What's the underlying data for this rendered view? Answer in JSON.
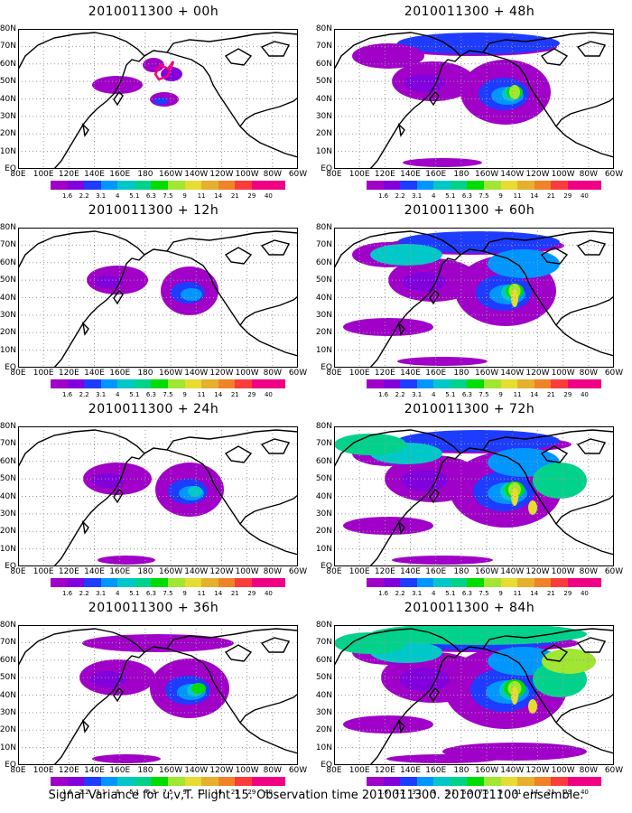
{
  "panels": [
    {
      "title": "2010011300 + 00h",
      "level": 0
    },
    {
      "title": "2010011300 + 48h",
      "level": 4
    },
    {
      "title": "2010011300 + 12h",
      "level": 1
    },
    {
      "title": "2010011300 + 60h",
      "level": 5
    },
    {
      "title": "2010011300 + 24h",
      "level": 2
    },
    {
      "title": "2010011300 + 72h",
      "level": 6
    },
    {
      "title": "2010011300 + 36h",
      "level": 3
    },
    {
      "title": "2010011300 + 84h",
      "level": 7
    }
  ],
  "x_ticks": [
    "80E",
    "100E",
    "120E",
    "140E",
    "160E",
    "180",
    "160W",
    "140W",
    "120W",
    "100W",
    "80W",
    "60W"
  ],
  "y_ticks": [
    "80N",
    "70N",
    "60N",
    "50N",
    "40N",
    "30N",
    "20N",
    "10N",
    "EQ"
  ],
  "colorbar": {
    "labels": [
      "1.6",
      "2.2",
      "3.1",
      "4",
      "5.1",
      "6.3",
      "7.5",
      "9",
      "11",
      "14",
      "21",
      "29",
      "40"
    ],
    "colors": [
      "#a000c8",
      "#8200dc",
      "#1e3cff",
      "#0096ff",
      "#00c8c8",
      "#00d28c",
      "#00dc00",
      "#a0e632",
      "#e6dc32",
      "#e6af2d",
      "#f08228",
      "#fa3c3c",
      "#f00082"
    ]
  },
  "caption": "Signal Variance for u,v,T. Flight 15. Observation time 2010011300. 2010011100 ensemble."
}
